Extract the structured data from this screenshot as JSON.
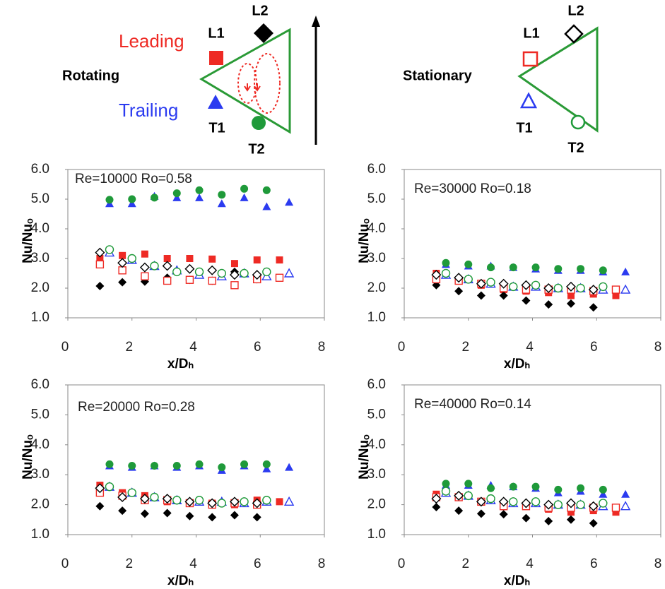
{
  "diagrams": {
    "rotating": {
      "title": "Rotating",
      "leading": "Leading",
      "trailing": "Trailing",
      "l1": "L1",
      "l2": "L2",
      "t1": "T1",
      "t2": "T2"
    },
    "stationary": {
      "title": "Stationary",
      "l1": "L1",
      "l2": "L2",
      "t1": "T1",
      "t2": "T2"
    }
  },
  "chart_data": [
    {
      "type": "scatter",
      "annotation": "Re=10000 Ro=0.58",
      "xlabel": "x/Dₕ",
      "ylabel": "Nu/Nuₒ",
      "xlim": [
        0,
        8
      ],
      "xticks": [
        0,
        2,
        4,
        6,
        8
      ],
      "ylim": [
        1,
        6
      ],
      "yticks": [
        {
          "value": 1,
          "label": "1.0"
        },
        {
          "value": 2,
          "label": "2.0"
        },
        {
          "value": 3,
          "label": "3.0"
        },
        {
          "value": 4,
          "label": "4.0"
        },
        {
          "value": 5,
          "label": "5.0"
        },
        {
          "value": 6,
          "label": "6.0"
        }
      ],
      "series": [
        {
          "marker": "square",
          "filled": true,
          "color": "#ee2a24",
          "x": [
            1.0,
            1.7,
            2.4,
            3.1,
            3.8,
            4.5,
            5.2,
            5.9,
            6.6
          ],
          "values": [
            3.0,
            3.1,
            3.15,
            3.0,
            3.0,
            2.98,
            2.83,
            2.95,
            2.95
          ]
        },
        {
          "marker": "diamond",
          "filled": true,
          "color": "#000000",
          "x": [
            1.0,
            1.7,
            2.4,
            3.1,
            3.8,
            4.5,
            5.2,
            5.9
          ],
          "values": [
            2.07,
            2.2,
            2.22,
            2.35,
            2.28,
            2.25,
            2.55,
            2.3
          ]
        },
        {
          "marker": "square",
          "filled": false,
          "color": "#ee2a24",
          "x": [
            1.0,
            1.7,
            2.4,
            3.1,
            3.8,
            4.5,
            5.2,
            5.9,
            6.6
          ],
          "values": [
            2.8,
            2.6,
            2.4,
            2.25,
            2.28,
            2.25,
            2.1,
            2.3,
            2.35
          ]
        },
        {
          "marker": "diamond",
          "filled": false,
          "color": "#000000",
          "x": [
            1.0,
            1.7,
            2.4,
            3.1,
            3.8,
            4.5,
            5.2,
            5.9
          ],
          "values": [
            3.2,
            2.85,
            2.7,
            2.75,
            2.65,
            2.6,
            2.45,
            2.45
          ]
        },
        {
          "marker": "triangle",
          "filled": true,
          "color": "#2b3bf0",
          "x": [
            1.3,
            2.0,
            2.7,
            3.4,
            4.1,
            4.8,
            5.5,
            6.2,
            6.9
          ],
          "values": [
            4.85,
            4.85,
            5.1,
            5.05,
            5.05,
            4.85,
            5.05,
            4.75,
            4.9
          ]
        },
        {
          "marker": "circle",
          "filled": true,
          "color": "#1f9a3a",
          "x": [
            1.3,
            2.0,
            2.7,
            3.4,
            4.1,
            4.8,
            5.5,
            6.2
          ],
          "values": [
            4.98,
            5.0,
            5.05,
            5.2,
            5.3,
            5.15,
            5.35,
            5.3
          ]
        },
        {
          "marker": "triangle",
          "filled": false,
          "color": "#2b3bf0",
          "x": [
            1.3,
            2.0,
            2.7,
            3.4,
            4.1,
            4.8,
            5.5,
            6.2,
            6.9
          ],
          "values": [
            3.2,
            2.95,
            2.75,
            2.6,
            2.45,
            2.4,
            2.5,
            2.4,
            2.5
          ]
        },
        {
          "marker": "circle",
          "filled": false,
          "color": "#1f9a3a",
          "x": [
            1.3,
            2.0,
            2.7,
            3.4,
            4.1,
            4.8,
            5.5,
            6.2
          ],
          "values": [
            3.3,
            3.0,
            2.75,
            2.55,
            2.55,
            2.5,
            2.5,
            2.55
          ]
        }
      ]
    },
    {
      "type": "scatter",
      "annotation": "Re=30000 Ro=0.18",
      "xlabel": "x/Dₕ",
      "ylabel": "Nu/Nuₒ",
      "xlim": [
        0,
        8
      ],
      "xticks": [
        0,
        2,
        4,
        6,
        8
      ],
      "ylim": [
        1,
        6
      ],
      "yticks": [
        {
          "value": 1,
          "label": "1.0"
        },
        {
          "value": 2,
          "label": "2.0"
        },
        {
          "value": 3,
          "label": "3.0"
        },
        {
          "value": 4,
          "label": "4.0"
        },
        {
          "value": 5,
          "label": "5.0"
        },
        {
          "value": 6,
          "label": "6.0"
        }
      ],
      "series": [
        {
          "marker": "square",
          "filled": true,
          "color": "#ee2a24",
          "x": [
            1.0,
            1.7,
            2.4,
            3.1,
            3.8,
            4.5,
            5.2,
            5.9,
            6.6
          ],
          "values": [
            2.5,
            2.25,
            2.1,
            1.95,
            1.9,
            1.85,
            1.75,
            1.8,
            1.75
          ]
        },
        {
          "marker": "diamond",
          "filled": true,
          "color": "#000000",
          "x": [
            1.0,
            1.7,
            2.4,
            3.1,
            3.8,
            4.5,
            5.2,
            5.9
          ],
          "values": [
            2.1,
            1.9,
            1.75,
            1.75,
            1.58,
            1.45,
            1.48,
            1.35
          ]
        },
        {
          "marker": "square",
          "filled": false,
          "color": "#ee2a24",
          "x": [
            1.0,
            1.7,
            2.4,
            3.1,
            3.8,
            4.5,
            5.2,
            5.9,
            6.6
          ],
          "values": [
            2.3,
            2.25,
            2.15,
            2.0,
            1.95,
            1.95,
            1.95,
            1.9,
            1.95
          ]
        },
        {
          "marker": "diamond",
          "filled": false,
          "color": "#000000",
          "x": [
            1.0,
            1.7,
            2.4,
            3.1,
            3.8,
            4.5,
            5.2,
            5.9
          ],
          "values": [
            2.45,
            2.35,
            2.15,
            2.15,
            2.1,
            2.0,
            2.05,
            1.95
          ]
        },
        {
          "marker": "triangle",
          "filled": true,
          "color": "#2b3bf0",
          "x": [
            1.3,
            2.0,
            2.7,
            3.4,
            4.1,
            4.8,
            5.5,
            6.2,
            6.9
          ],
          "values": [
            2.8,
            2.75,
            2.75,
            2.7,
            2.65,
            2.6,
            2.6,
            2.55,
            2.55
          ]
        },
        {
          "marker": "circle",
          "filled": true,
          "color": "#1f9a3a",
          "x": [
            1.3,
            2.0,
            2.7,
            3.4,
            4.1,
            4.8,
            5.5,
            6.2
          ],
          "values": [
            2.85,
            2.8,
            2.7,
            2.7,
            2.7,
            2.65,
            2.65,
            2.6
          ]
        },
        {
          "marker": "triangle",
          "filled": false,
          "color": "#2b3bf0",
          "x": [
            1.3,
            2.0,
            2.7,
            3.4,
            4.1,
            4.8,
            5.5,
            6.2,
            6.9
          ],
          "values": [
            2.45,
            2.3,
            2.15,
            2.05,
            2.05,
            2.0,
            2.0,
            1.95,
            1.95
          ]
        },
        {
          "marker": "circle",
          "filled": false,
          "color": "#1f9a3a",
          "x": [
            1.3,
            2.0,
            2.7,
            3.4,
            4.1,
            4.8,
            5.5,
            6.2
          ],
          "values": [
            2.5,
            2.3,
            2.2,
            2.05,
            2.1,
            2.0,
            2.0,
            2.05
          ]
        }
      ]
    },
    {
      "type": "scatter",
      "annotation": "Re=20000 Ro=0.28",
      "xlabel": "x/Dₕ",
      "ylabel": "Nu/Nuₒ",
      "xlim": [
        0,
        8
      ],
      "xticks": [
        0,
        2,
        4,
        6,
        8
      ],
      "ylim": [
        1,
        6
      ],
      "yticks": [
        {
          "value": 1,
          "label": "1.0"
        },
        {
          "value": 2,
          "label": "2.0"
        },
        {
          "value": 3,
          "label": "3.0"
        },
        {
          "value": 4,
          "label": "4.0"
        },
        {
          "value": 5,
          "label": "5.0"
        },
        {
          "value": 6,
          "label": "6.0"
        }
      ],
      "series": [
        {
          "marker": "square",
          "filled": true,
          "color": "#ee2a24",
          "x": [
            1.0,
            1.7,
            2.4,
            3.1,
            3.8,
            4.5,
            5.2,
            5.9,
            6.6
          ],
          "values": [
            2.65,
            2.4,
            2.3,
            2.1,
            2.05,
            2.05,
            2.0,
            2.15,
            2.1
          ]
        },
        {
          "marker": "diamond",
          "filled": true,
          "color": "#000000",
          "x": [
            1.0,
            1.7,
            2.4,
            3.1,
            3.8,
            4.5,
            5.2,
            5.9
          ],
          "values": [
            1.95,
            1.8,
            1.7,
            1.72,
            1.62,
            1.58,
            1.65,
            1.58
          ]
        },
        {
          "marker": "square",
          "filled": false,
          "color": "#ee2a24",
          "x": [
            1.0,
            1.7,
            2.4,
            3.1,
            3.8,
            4.5,
            5.2,
            5.9
          ],
          "values": [
            2.4,
            2.3,
            2.15,
            2.15,
            2.05,
            2.0,
            2.05,
            2.0
          ]
        },
        {
          "marker": "diamond",
          "filled": false,
          "color": "#000000",
          "x": [
            1.0,
            1.7,
            2.4,
            3.1,
            3.8,
            4.5,
            5.2,
            5.9
          ],
          "values": [
            2.55,
            2.25,
            2.2,
            2.2,
            2.1,
            2.05,
            2.1,
            2.05
          ]
        },
        {
          "marker": "triangle",
          "filled": true,
          "color": "#2b3bf0",
          "x": [
            1.3,
            2.0,
            2.7,
            3.4,
            4.1,
            4.8,
            5.5,
            6.2,
            6.9
          ],
          "values": [
            3.3,
            3.25,
            3.3,
            3.25,
            3.3,
            3.15,
            3.3,
            3.2,
            3.25
          ]
        },
        {
          "marker": "circle",
          "filled": true,
          "color": "#1f9a3a",
          "x": [
            1.3,
            2.0,
            2.7,
            3.4,
            4.1,
            4.8,
            5.5,
            6.2
          ],
          "values": [
            3.35,
            3.3,
            3.3,
            3.3,
            3.35,
            3.25,
            3.35,
            3.35
          ]
        },
        {
          "marker": "triangle",
          "filled": false,
          "color": "#2b3bf0",
          "x": [
            1.3,
            2.0,
            2.7,
            3.4,
            4.1,
            4.8,
            5.5,
            6.2,
            6.9
          ],
          "values": [
            2.6,
            2.4,
            2.25,
            2.15,
            2.1,
            2.1,
            2.05,
            2.1,
            2.1
          ]
        },
        {
          "marker": "circle",
          "filled": false,
          "color": "#1f9a3a",
          "x": [
            1.3,
            2.0,
            2.7,
            3.4,
            4.1,
            4.8,
            5.5,
            6.2
          ],
          "values": [
            2.6,
            2.4,
            2.25,
            2.15,
            2.15,
            2.05,
            2.1,
            2.15
          ]
        }
      ]
    },
    {
      "type": "scatter",
      "annotation": "Re=40000 Ro=0.14",
      "xlabel": "x/Dₕ",
      "ylabel": "Nu/Nuₒ",
      "xlim": [
        0,
        8
      ],
      "xticks": [
        0,
        2,
        4,
        6,
        8
      ],
      "ylim": [
        1,
        6
      ],
      "yticks": [
        {
          "value": 1,
          "label": "1.0"
        },
        {
          "value": 2,
          "label": "2.0"
        },
        {
          "value": 3,
          "label": "3.0"
        },
        {
          "value": 4,
          "label": "4.0"
        },
        {
          "value": 5,
          "label": "5.0"
        },
        {
          "value": 6,
          "label": "6.0"
        }
      ],
      "series": [
        {
          "marker": "square",
          "filled": true,
          "color": "#ee2a24",
          "x": [
            1.0,
            1.7,
            2.4,
            3.1,
            3.8,
            4.5,
            5.2,
            5.9,
            6.6
          ],
          "values": [
            2.35,
            2.25,
            2.1,
            1.95,
            1.95,
            1.85,
            1.75,
            1.8,
            1.75
          ]
        },
        {
          "marker": "diamond",
          "filled": true,
          "color": "#000000",
          "x": [
            1.0,
            1.7,
            2.4,
            3.1,
            3.8,
            4.5,
            5.2,
            5.9
          ],
          "values": [
            1.92,
            1.8,
            1.7,
            1.68,
            1.55,
            1.45,
            1.5,
            1.38
          ]
        },
        {
          "marker": "square",
          "filled": false,
          "color": "#ee2a24",
          "x": [
            1.0,
            1.7,
            2.4,
            3.1,
            3.8,
            4.5,
            5.2,
            5.9,
            6.6
          ],
          "values": [
            2.25,
            2.25,
            2.1,
            1.95,
            1.95,
            1.9,
            1.9,
            1.9,
            1.9
          ]
        },
        {
          "marker": "diamond",
          "filled": false,
          "color": "#000000",
          "x": [
            1.0,
            1.7,
            2.4,
            3.1,
            3.8,
            4.5,
            5.2,
            5.9
          ],
          "values": [
            2.2,
            2.3,
            2.1,
            2.1,
            2.05,
            2.0,
            2.05,
            1.95
          ]
        },
        {
          "marker": "triangle",
          "filled": true,
          "color": "#2b3bf0",
          "x": [
            1.3,
            2.0,
            2.7,
            3.4,
            4.1,
            4.8,
            5.5,
            6.2,
            6.9
          ],
          "values": [
            2.65,
            2.65,
            2.65,
            2.6,
            2.55,
            2.4,
            2.45,
            2.35,
            2.35
          ]
        },
        {
          "marker": "circle",
          "filled": true,
          "color": "#1f9a3a",
          "x": [
            1.3,
            2.0,
            2.7,
            3.4,
            4.1,
            4.8,
            5.5,
            6.2
          ],
          "values": [
            2.7,
            2.7,
            2.55,
            2.6,
            2.6,
            2.5,
            2.55,
            2.5
          ]
        },
        {
          "marker": "triangle",
          "filled": false,
          "color": "#2b3bf0",
          "x": [
            1.3,
            2.0,
            2.7,
            3.4,
            4.1,
            4.8,
            5.5,
            6.2,
            6.9
          ],
          "values": [
            2.4,
            2.3,
            2.15,
            2.05,
            2.05,
            2.0,
            2.0,
            1.95,
            1.95
          ]
        },
        {
          "marker": "circle",
          "filled": false,
          "color": "#1f9a3a",
          "x": [
            1.3,
            2.0,
            2.7,
            3.4,
            4.1,
            4.8,
            5.5,
            6.2
          ],
          "values": [
            2.45,
            2.3,
            2.2,
            2.1,
            2.1,
            2.0,
            2.0,
            2.05
          ]
        }
      ]
    }
  ]
}
